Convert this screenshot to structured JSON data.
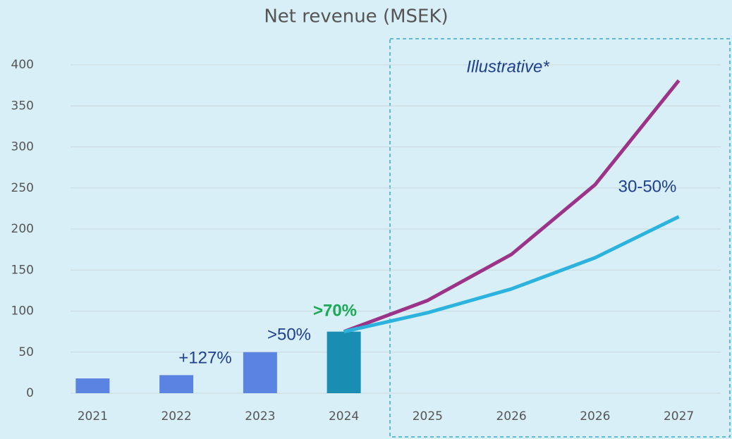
{
  "chart_data": {
    "type": "bar",
    "title": "Net revenue (MSEK)",
    "categories": [
      "2021",
      "2022",
      "2023",
      "2024",
      "2025",
      "2026",
      "2026",
      "2027"
    ],
    "bars": {
      "values": [
        18,
        22,
        50,
        75,
        null,
        null,
        null,
        null
      ],
      "colors": [
        "#5b84e2",
        "#5b84e2",
        "#5b84e2",
        "#1a8db3",
        null,
        null,
        null,
        null
      ]
    },
    "lines": [
      {
        "color": "#9b3389",
        "values": [
          null,
          null,
          null,
          75,
          113,
          169,
          254,
          381
        ]
      },
      {
        "color": "#2bb3de",
        "values": [
          null,
          null,
          null,
          75,
          98,
          127,
          165,
          215
        ]
      }
    ],
    "ylim": [
      0,
      400
    ],
    "yticks": [
      0,
      50,
      100,
      150,
      200,
      250,
      300,
      350,
      400
    ],
    "grid": true,
    "annotations": [
      {
        "text": "+127%",
        "color": "#1f3f8f",
        "bold": false,
        "italic": false
      },
      {
        "text": ">50%",
        "color": "#1f3f8f",
        "bold": false,
        "italic": false
      },
      {
        "text": ">70%",
        "color": "#1aaa55",
        "bold": true,
        "italic": false
      },
      {
        "text": "30-50%",
        "color": "#1f3f8f",
        "bold": false,
        "italic": false
      },
      {
        "text": "Illustrative*",
        "color": "#1f3f8f",
        "bold": false,
        "italic": true
      }
    ]
  }
}
